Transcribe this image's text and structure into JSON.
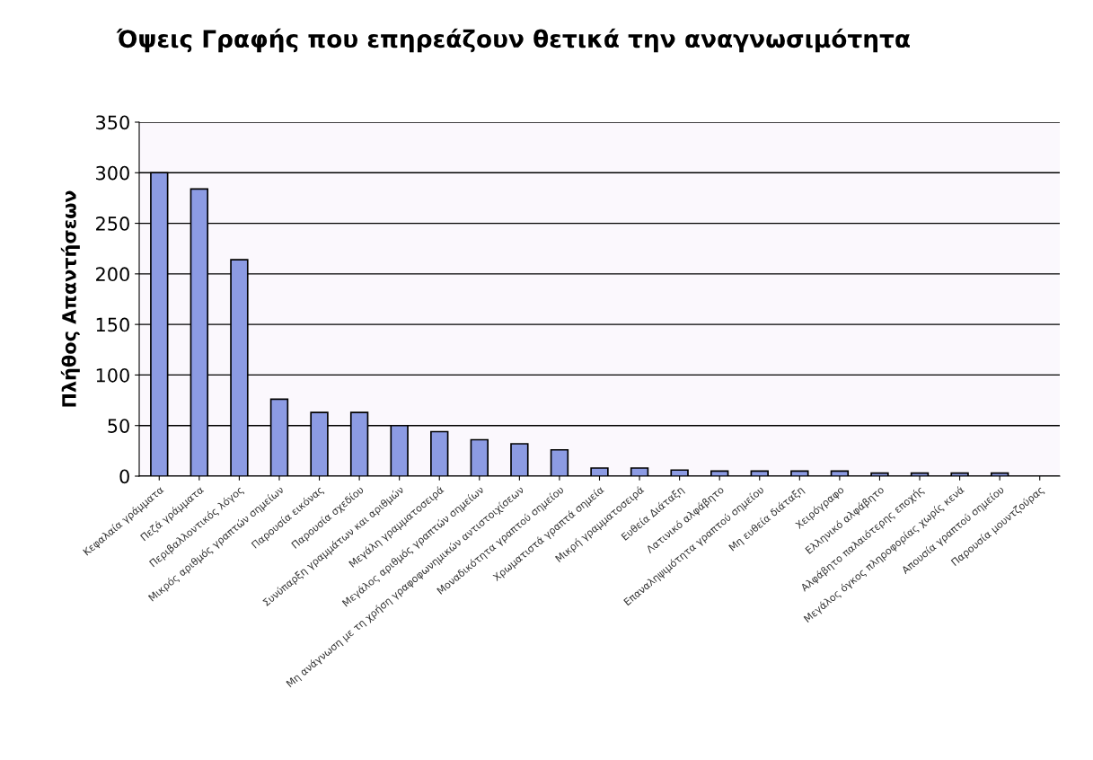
{
  "chart_data": {
    "type": "bar",
    "title": "Όψεις Γραφής που επηρεάζουν θετικά την αναγνωσιμότητα",
    "ylabel": "Πλήθος Απαντήσεων",
    "categories": [
      "Κεφαλαία γράμματα",
      "Πεζά γράμματα",
      "Περιβαλλοντικός λόγος",
      "Μικρός αριθμός γραπτών σημείων",
      "Παρουσία εικόνας",
      "Παρουσία σχεδίου",
      "Συνύπαρξη γραμμάτων και αριθμών",
      "Μεγάλη γραμματοσειρά",
      "Μεγάλος αριθμός γραπτών σημείων",
      "Μη ανάγνωση με τη χρήση γραφοφωνημικών αντιστοιχίσεων",
      "Μοναδικότητα γραπτού σημείου",
      "Χρωματιστά γραπτά σημεία",
      "Μικρή γραμματοσειρά",
      "Ευθεία Διάταξη",
      "Λατινικό αλφάβητο",
      "Επαναληψιμότητα γραπτού σημείου",
      "Μη ευθεία διάταξη",
      "Χειρόγραφο",
      "Ελληνικό αλφάβητο",
      "Αλφάβητο παλαιότερης εποχής",
      "Μεγάλος όγκος πληροφορίας χωρίς κενά",
      "Απουσία γραπτού σημείου",
      "Παρουσία μουντζούρας"
    ],
    "values": [
      300,
      284,
      214,
      76,
      63,
      63,
      50,
      44,
      36,
      32,
      26,
      8,
      8,
      6,
      5,
      5,
      5,
      5,
      3,
      3,
      3,
      3,
      0
    ],
    "color": "#8c9be3",
    "ylim": [
      0,
      350
    ],
    "yticks": [
      0,
      50,
      100,
      150,
      200,
      250,
      300,
      350
    ],
    "grid": "y",
    "legend": false
  }
}
